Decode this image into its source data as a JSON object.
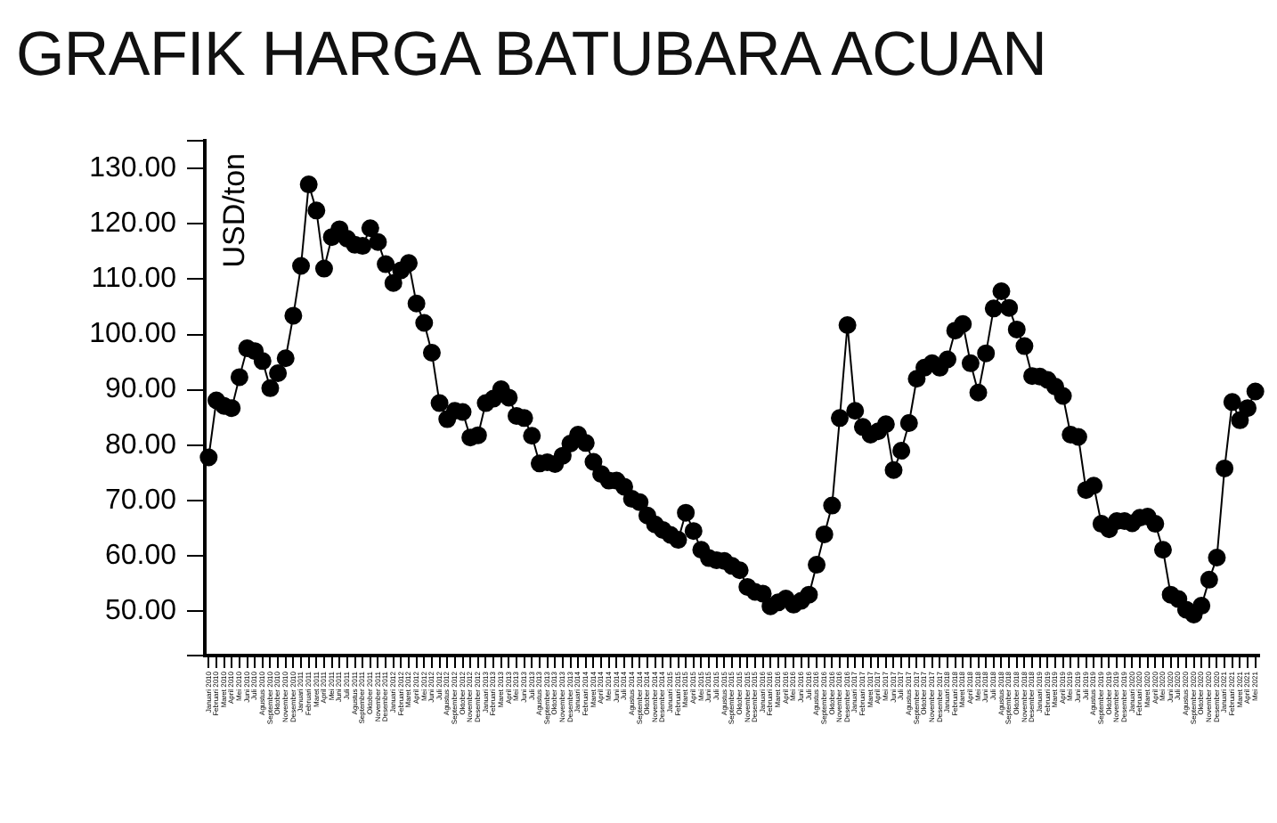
{
  "chart_data": {
    "type": "line",
    "title": "GRAFIK HARGA BATUBARA ACUAN",
    "ylabel": "USD/ton",
    "categories": [
      "Januari 2010",
      "Februari 2010",
      "Maret 2010",
      "April 2010",
      "Mei 2010",
      "Juni 2010",
      "Juli 2010",
      "Agustus 2010",
      "September 2010",
      "Oktober 2010",
      "November 2010",
      "Desember 2010",
      "Januari 2011",
      "Februari 2011",
      "Maret 2011",
      "April 2011",
      "Mei 2011",
      "Juni 2011",
      "Juli 2011",
      "Agustus 2011",
      "September 2011",
      "Oktober 2011",
      "November 2011",
      "Desember 2011",
      "Januari 2012",
      "Februari 2012",
      "Maret 2012",
      "April 2012",
      "Mei 2012",
      "Juni 2012",
      "Juli 2012",
      "Agustus 2012",
      "September 2012",
      "Oktober 2012",
      "November 2012",
      "Desember 2012",
      "Januari 2013",
      "Februari 2013",
      "Maret 2013",
      "April 2013",
      "Mei 2013",
      "Juni 2013",
      "Juli 2013",
      "Agustus 2013",
      "September 2013",
      "Oktober 2013",
      "November 2013",
      "Desember 2013",
      "Januari 2014",
      "Februari 2014",
      "Maret 2014",
      "April 2014",
      "Mei 2014",
      "Juni 2014",
      "Juli 2014",
      "Agustus 2014",
      "September 2014",
      "Oktober 2014",
      "November 2014",
      "Desember 2014",
      "Januari 2015",
      "Februari 2015",
      "Maret 2015",
      "April 2015",
      "Mei 2015",
      "Juni 2015",
      "Juli 2015",
      "Agustus 2015",
      "September 2015",
      "Oktober 2015",
      "November 2015",
      "Desember 2015",
      "Januari 2016",
      "Februari 2016",
      "Maret 2016",
      "April 2016",
      "Mei 2016",
      "Juni 2016",
      "Juli 2016",
      "Agustus 2016",
      "September 2016",
      "Oktober 2016",
      "November 2016",
      "Desember 2016",
      "Januari 2017",
      "Februari 2017",
      "Maret 2017",
      "April 2017",
      "Mei 2017",
      "Juni 2017",
      "Juli 2017",
      "Agustus 2017",
      "September 2017",
      "Oktober 2017",
      "November 2017",
      "Desember 2017",
      "Januari 2018",
      "Februari 2018",
      "Maret 2018",
      "April 2018",
      "Mei 2018",
      "Juni 2018",
      "Juli 2018",
      "Agustus 2018",
      "September 2018",
      "Oktober 2018",
      "November 2018",
      "Desember 2018",
      "Januari 2019",
      "Februari 2019",
      "Maret 2019",
      "April 2019",
      "Mei 2019",
      "Juni 2019",
      "Juli 2019",
      "Agustus 2019",
      "September 2019",
      "Oktober 2019",
      "November 2019",
      "Desember 2019",
      "Januari 2020",
      "Februari 2020",
      "Maret 2020",
      "April 2020",
      "Mei 2020",
      "Juni 2020",
      "Juli 2020",
      "Agustus 2020",
      "September 2020",
      "Oktober 2020",
      "November 2020",
      "Desember 2020",
      "Januari 2021",
      "Februari 2021",
      "Maret 2021",
      "April 2021",
      "Mei 2021"
    ],
    "values": [
      77.8,
      88.1,
      87.1,
      86.7,
      92.3,
      97.5,
      97.0,
      95.2,
      90.3,
      93.0,
      95.7,
      103.4,
      112.4,
      127.1,
      122.4,
      111.9,
      117.6,
      119.0,
      117.3,
      116.2,
      116.0,
      119.2,
      116.7,
      112.7,
      109.3,
      111.6,
      112.9,
      105.6,
      102.1,
      96.7,
      87.6,
      84.7,
      86.2,
      86.0,
      81.4,
      81.8,
      87.6,
      88.4,
      90.1,
      88.6,
      85.3,
      84.9,
      81.7,
      76.7,
      76.9,
      76.6,
      78.1,
      80.3,
      81.9,
      80.4,
      77.0,
      74.8,
      73.6,
      73.6,
      72.5,
      70.3,
      69.7,
      67.3,
      65.7,
      64.7,
      63.8,
      62.9,
      67.8,
      64.5,
      61.1,
      59.6,
      59.2,
      59.1,
      58.2,
      57.4,
      54.4,
      53.5,
      53.2,
      50.9,
      51.6,
      52.3,
      51.2,
      51.9,
      53.0,
      58.4,
      63.9,
      69.1,
      84.9,
      101.7,
      86.2,
      83.3,
      81.9,
      82.5,
      83.8,
      75.5,
      79.0,
      84.0,
      92.0,
      94.0,
      94.8,
      94.0,
      95.5,
      100.7,
      101.9,
      94.8,
      89.5,
      96.6,
      104.7,
      107.8,
      104.8,
      100.9,
      97.9,
      92.5,
      92.4,
      91.8,
      90.6,
      88.9,
      81.9,
      81.5,
      71.9,
      72.7,
      65.8,
      64.8,
      66.3,
      66.3,
      65.9,
      66.9,
      67.1,
      65.8,
      61.1,
      53.0,
      52.2,
      50.3,
      49.4,
      51.0,
      55.7,
      59.7,
      75.8,
      87.8,
      84.5,
      86.7,
      89.7
    ],
    "color": "#000000",
    "marker": "circle",
    "line_style": "solid",
    "ylim": [
      42,
      135
    ],
    "yticks": [
      {
        "value": 42,
        "label": null
      },
      {
        "value": 50,
        "label": "50.00"
      },
      {
        "value": 60,
        "label": "60.00"
      },
      {
        "value": 70,
        "label": "70.00"
      },
      {
        "value": 80,
        "label": "80.00"
      },
      {
        "value": 90,
        "label": "90.00"
      },
      {
        "value": 100,
        "label": "100.00"
      },
      {
        "value": 110,
        "label": "110.00"
      },
      {
        "value": 120,
        "label": "120.00"
      },
      {
        "value": 130,
        "label": "130.00"
      },
      {
        "value": 135,
        "label": null
      }
    ]
  }
}
